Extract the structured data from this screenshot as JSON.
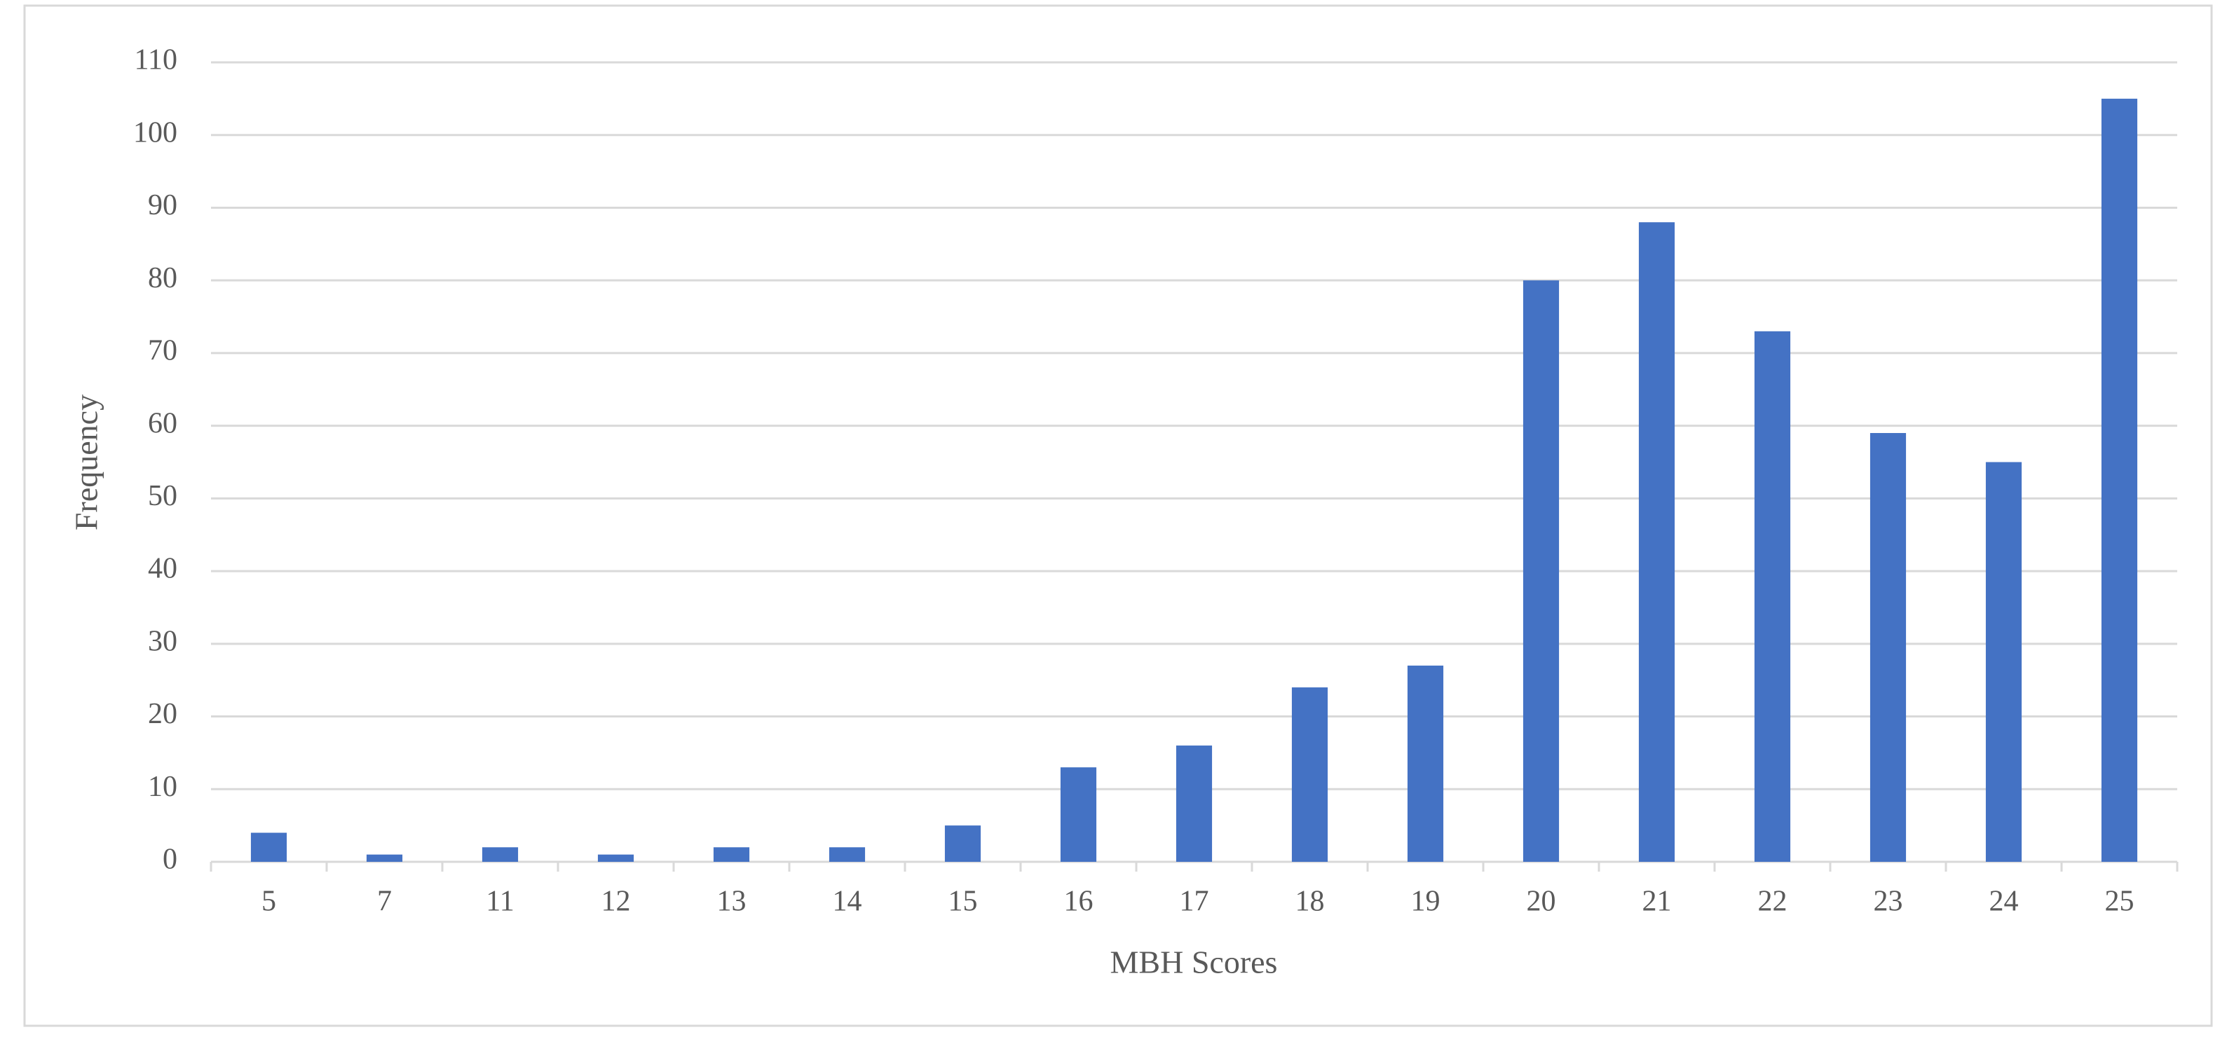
{
  "chart_data": {
    "type": "bar",
    "categories": [
      "5",
      "7",
      "11",
      "12",
      "13",
      "14",
      "15",
      "16",
      "17",
      "18",
      "19",
      "20",
      "21",
      "22",
      "23",
      "24",
      "25"
    ],
    "values": [
      4,
      1,
      2,
      1,
      2,
      2,
      5,
      13,
      16,
      24,
      27,
      80,
      88,
      73,
      59,
      55,
      105
    ],
    "color": "#4472c4",
    "x_label": "MBH Scores",
    "y_label": "Frequency",
    "ylim": [
      0,
      110
    ],
    "yticks": [
      0,
      10,
      20,
      30,
      40,
      50,
      60,
      70,
      80,
      90,
      100,
      110
    ],
    "grid": true
  }
}
